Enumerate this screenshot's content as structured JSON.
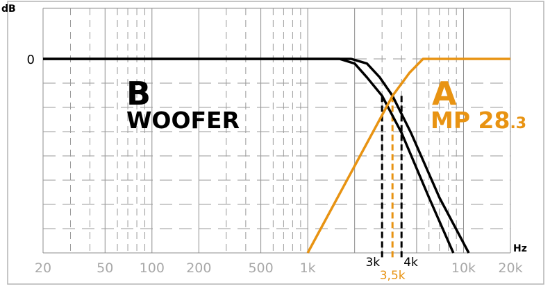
{
  "chart_data": {
    "type": "line",
    "title": "",
    "xlabel": "Hz",
    "ylabel": "dB",
    "x_scale": "log",
    "xlim": [
      20,
      20000
    ],
    "x_ticks": [
      {
        "value": 20,
        "label": "20"
      },
      {
        "value": 50,
        "label": "50"
      },
      {
        "value": 100,
        "label": "100"
      },
      {
        "value": 200,
        "label": "200"
      },
      {
        "value": 500,
        "label": "500"
      },
      {
        "value": 1000,
        "label": "1k"
      },
      {
        "value": 10000,
        "label": "10k"
      },
      {
        "value": 20000,
        "label": "20k"
      }
    ],
    "y_ticks": [
      {
        "value": 0,
        "label": "0"
      }
    ],
    "grid": true,
    "series": [
      {
        "name": "B",
        "color": "#000000",
        "points": [
          [
            20,
            0
          ],
          [
            1600,
            0
          ],
          [
            2000,
            -2
          ],
          [
            2400,
            -8
          ],
          [
            3000,
            -16
          ],
          [
            4000,
            -32
          ],
          [
            6000,
            -60
          ],
          [
            8600,
            -84
          ]
        ]
      },
      {
        "name": "B",
        "color": "#000000",
        "points": [
          [
            20,
            0
          ],
          [
            1900,
            0
          ],
          [
            2400,
            -2
          ],
          [
            2900,
            -8
          ],
          [
            3500,
            -16
          ],
          [
            4600,
            -32
          ],
          [
            7000,
            -60
          ],
          [
            10800,
            -84
          ]
        ]
      },
      {
        "name": "A",
        "color": "#e89312",
        "points": [
          [
            1000,
            -84
          ],
          [
            3500,
            -16
          ],
          [
            4500,
            -6
          ],
          [
            5500,
            0
          ],
          [
            20000,
            0
          ]
        ]
      }
    ],
    "markers": [
      {
        "value": 3000,
        "label": "3k",
        "color": "#000000"
      },
      {
        "value": 3500,
        "label": "3,5k",
        "color": "#e89312"
      },
      {
        "value": 4000,
        "label": "4k",
        "color": "#000000"
      }
    ],
    "annotations": [
      {
        "letter": "B",
        "name": "WOOFER",
        "color": "#000000"
      },
      {
        "letter": "A",
        "name_main": "MP 28",
        "name_sub": ".3",
        "color": "#e89312"
      }
    ]
  }
}
